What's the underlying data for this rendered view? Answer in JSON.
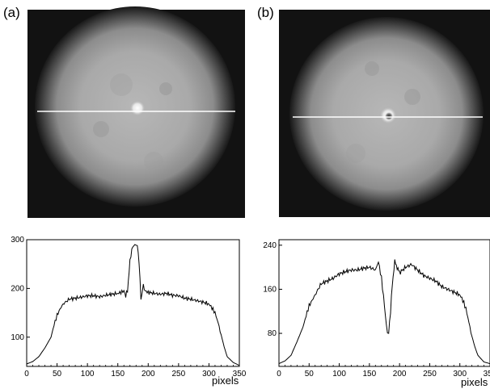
{
  "panels": [
    {
      "label": "(a)"
    },
    {
      "label": "(b)"
    }
  ],
  "chart_data": [
    {
      "type": "line",
      "title": "",
      "xlabel": "pixels",
      "ylabel": "",
      "xlim": [
        0,
        350
      ],
      "ylim": [
        40,
        300
      ],
      "xticks": [
        0,
        50,
        100,
        150,
        200,
        250,
        300,
        350
      ],
      "yticks": [
        100,
        200,
        300
      ],
      "grid": false,
      "series": [
        {
          "color": "#000000",
          "x": [
            0,
            10,
            20,
            30,
            40,
            45,
            50,
            55,
            60,
            70,
            80,
            90,
            100,
            110,
            120,
            130,
            140,
            150,
            155,
            160,
            163,
            166,
            170,
            173,
            176,
            178,
            180,
            182,
            185,
            188,
            190,
            192,
            195,
            200,
            210,
            220,
            230,
            240,
            250,
            260,
            270,
            280,
            290,
            300,
            305,
            310,
            315,
            320,
            325,
            330,
            340,
            350
          ],
          "y": [
            45,
            50,
            60,
            78,
            100,
            125,
            145,
            158,
            168,
            178,
            180,
            182,
            185,
            185,
            183,
            186,
            188,
            190,
            192,
            195,
            185,
            196,
            255,
            280,
            288,
            288,
            288,
            288,
            255,
            180,
            190,
            205,
            195,
            192,
            190,
            188,
            190,
            186,
            185,
            180,
            178,
            175,
            172,
            168,
            160,
            150,
            130,
            105,
            80,
            60,
            48,
            42
          ]
        }
      ]
    },
    {
      "type": "line",
      "title": "",
      "xlabel": "pixels",
      "ylabel": "",
      "xlim": [
        0,
        350
      ],
      "ylim": [
        20,
        250
      ],
      "xticks": [
        0,
        50,
        100,
        150,
        200,
        250,
        300,
        350
      ],
      "yticks": [
        80,
        160,
        240
      ],
      "grid": false,
      "series": [
        {
          "color": "#000000",
          "x": [
            0,
            10,
            20,
            30,
            40,
            45,
            50,
            55,
            60,
            70,
            80,
            90,
            100,
            110,
            120,
            130,
            140,
            150,
            160,
            165,
            170,
            175,
            178,
            180,
            182,
            185,
            188,
            192,
            196,
            200,
            210,
            220,
            230,
            240,
            250,
            260,
            270,
            280,
            290,
            300,
            305,
            310,
            315,
            320,
            325,
            330,
            340,
            350
          ],
          "y": [
            25,
            30,
            40,
            65,
            92,
            112,
            130,
            140,
            150,
            170,
            175,
            180,
            188,
            192,
            195,
            195,
            198,
            200,
            195,
            210,
            180,
            130,
            95,
            80,
            80,
            120,
            170,
            210,
            200,
            190,
            200,
            205,
            195,
            185,
            180,
            175,
            165,
            160,
            155,
            150,
            140,
            125,
            100,
            75,
            55,
            40,
            28,
            25
          ]
        }
      ]
    }
  ]
}
